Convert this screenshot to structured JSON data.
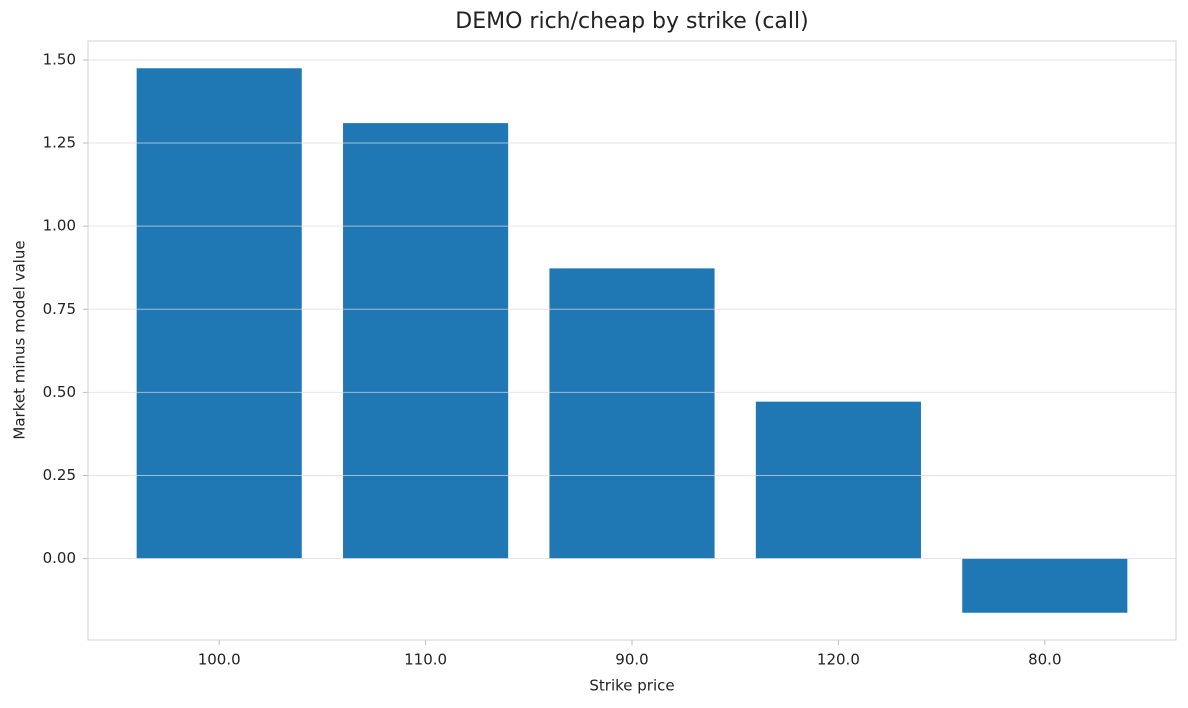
{
  "chart_data": {
    "type": "bar",
    "title": "DEMO rich/cheap by strike (call)",
    "x_label": "Strike price",
    "y_label": "Market minus model value",
    "categories": [
      "100.0",
      "110.0",
      "90.0",
      "120.0",
      "80.0"
    ],
    "values": [
      1.475,
      1.31,
      0.873,
      0.472,
      -0.163
    ],
    "color": "#1f77b4",
    "ylim": [
      -0.245,
      1.557
    ],
    "yticks": [
      {
        "value": 0,
        "label": "0.00"
      },
      {
        "value": 0.25,
        "label": "0.25"
      },
      {
        "value": 0.5,
        "label": "0.50"
      },
      {
        "value": 0.75,
        "label": "0.75"
      },
      {
        "value": 1,
        "label": "1.00"
      },
      {
        "value": 1.25,
        "label": "1.25"
      },
      {
        "value": 1.5,
        "label": "1.50"
      }
    ],
    "grid": true
  }
}
